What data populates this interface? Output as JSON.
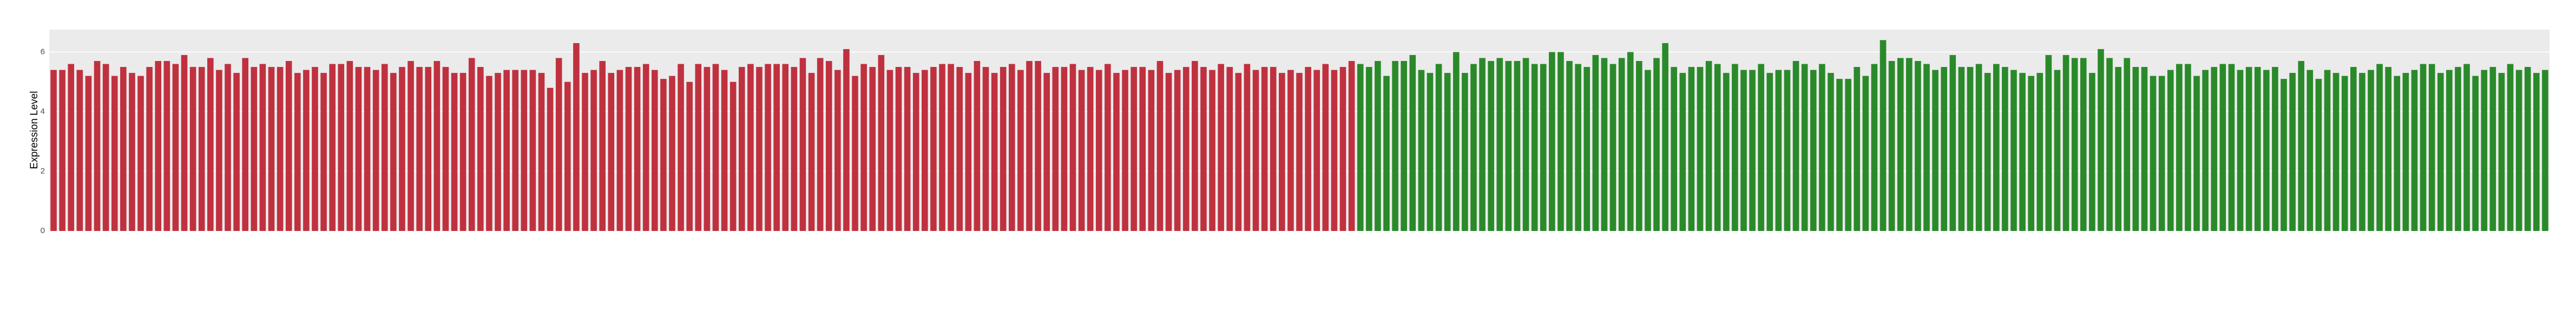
{
  "chart_data": {
    "type": "bar",
    "y_label": "Expression Level",
    "ylim": [
      0,
      6.75
    ],
    "yticks": [
      0,
      2,
      4,
      6
    ],
    "grid": true,
    "series": [
      {
        "color": "#c0313f",
        "values": [
          5.4,
          5.4,
          5.6,
          5.4,
          5.2,
          5.7,
          5.6,
          5.2,
          5.5,
          5.3,
          5.2,
          5.5,
          5.7,
          5.7,
          5.6,
          5.9,
          5.5,
          5.5,
          5.8,
          5.4,
          5.6,
          5.3,
          5.8,
          5.5,
          5.6,
          5.5,
          5.5,
          5.7,
          5.3,
          5.4,
          5.5,
          5.3,
          5.6,
          5.6,
          5.7,
          5.5,
          5.5,
          5.4,
          5.6,
          5.3,
          5.5,
          5.7,
          5.5,
          5.5,
          5.7,
          5.5,
          5.3,
          5.3,
          5.8,
          5.5,
          5.2,
          5.3,
          5.4,
          5.4,
          5.4,
          5.4,
          5.3,
          4.8,
          5.8,
          5.0,
          6.3,
          5.3,
          5.4,
          5.7,
          5.3,
          5.4,
          5.5,
          5.5,
          5.6,
          5.4,
          5.1,
          5.2,
          5.6,
          5.0,
          5.6,
          5.5,
          5.6,
          5.4,
          5.0,
          5.5,
          5.6,
          5.5,
          5.6,
          5.6,
          5.6,
          5.5,
          5.8,
          5.3,
          5.8,
          5.7,
          5.4,
          6.1,
          5.2,
          5.6,
          5.5,
          5.9,
          5.4,
          5.5,
          5.5,
          5.3,
          5.4,
          5.5,
          5.6,
          5.6,
          5.5,
          5.3,
          5.7,
          5.5,
          5.3,
          5.5,
          5.6,
          5.4,
          5.7,
          5.7,
          5.3,
          5.5,
          5.5,
          5.6,
          5.4,
          5.5,
          5.4,
          5.6,
          5.3,
          5.4,
          5.5,
          5.5,
          5.4,
          5.7,
          5.3,
          5.4,
          5.5,
          5.7,
          5.5,
          5.4,
          5.6,
          5.5,
          5.3,
          5.6,
          5.4,
          5.5,
          5.5,
          5.3,
          5.4,
          5.3,
          5.5,
          5.4,
          5.6,
          5.4,
          5.5,
          5.7
        ]
      },
      {
        "color": "#2a8a2a",
        "values": [
          5.6,
          5.5,
          5.7,
          5.2,
          5.7,
          5.7,
          5.9,
          5.4,
          5.3,
          5.6,
          5.3,
          6.0,
          5.3,
          5.6,
          5.8,
          5.7,
          5.8,
          5.7,
          5.7,
          5.8,
          5.6,
          5.6,
          6.0,
          6.0,
          5.7,
          5.6,
          5.5,
          5.9,
          5.8,
          5.6,
          5.8,
          6.0,
          5.7,
          5.4,
          5.8,
          6.3,
          5.5,
          5.3,
          5.5,
          5.5,
          5.7,
          5.6,
          5.3,
          5.6,
          5.4,
          5.4,
          5.6,
          5.3,
          5.4,
          5.4,
          5.7,
          5.6,
          5.4,
          5.6,
          5.3,
          5.1,
          5.1,
          5.5,
          5.2,
          5.6,
          6.4,
          5.7,
          5.8,
          5.8,
          5.7,
          5.6,
          5.4,
          5.5,
          5.9,
          5.5,
          5.5,
          5.6,
          5.3,
          5.6,
          5.5,
          5.4,
          5.3,
          5.2,
          5.3,
          5.9,
          5.4,
          5.9,
          5.8,
          5.8,
          5.3,
          6.1,
          5.8,
          5.5,
          5.8,
          5.5,
          5.5,
          5.2,
          5.2,
          5.4,
          5.6,
          5.6,
          5.2,
          5.4,
          5.5,
          5.6,
          5.6,
          5.4,
          5.5,
          5.5,
          5.4,
          5.5,
          5.1,
          5.3,
          5.7,
          5.4,
          5.1,
          5.4,
          5.3,
          5.2,
          5.5,
          5.3,
          5.4,
          5.6,
          5.5,
          5.2,
          5.3,
          5.4,
          5.6,
          5.6,
          5.3,
          5.4,
          5.5,
          5.6,
          5.2,
          5.4,
          5.5,
          5.3,
          5.6,
          5.4,
          5.5,
          5.3,
          5.4
        ]
      }
    ]
  }
}
